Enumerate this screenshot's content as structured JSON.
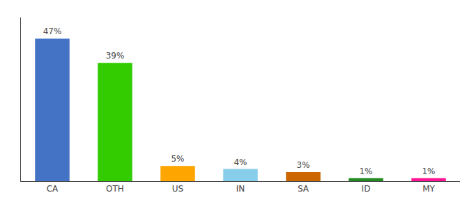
{
  "chart_data": {
    "type": "bar",
    "categories": [
      "CA",
      "OTH",
      "US",
      "IN",
      "SA",
      "ID",
      "MY"
    ],
    "values": [
      47,
      39,
      5,
      4,
      3,
      1,
      1
    ],
    "value_labels": [
      "47%",
      "39%",
      "5%",
      "4%",
      "3%",
      "1%",
      "1%"
    ],
    "colors": [
      "#4472C4",
      "#33CC00",
      "#FFA500",
      "#87CEEB",
      "#CC6600",
      "#228B22",
      "#FF1493"
    ],
    "ylim": [
      0,
      54
    ],
    "data_labels": true,
    "tick_labels": "x",
    "grid": false
  }
}
